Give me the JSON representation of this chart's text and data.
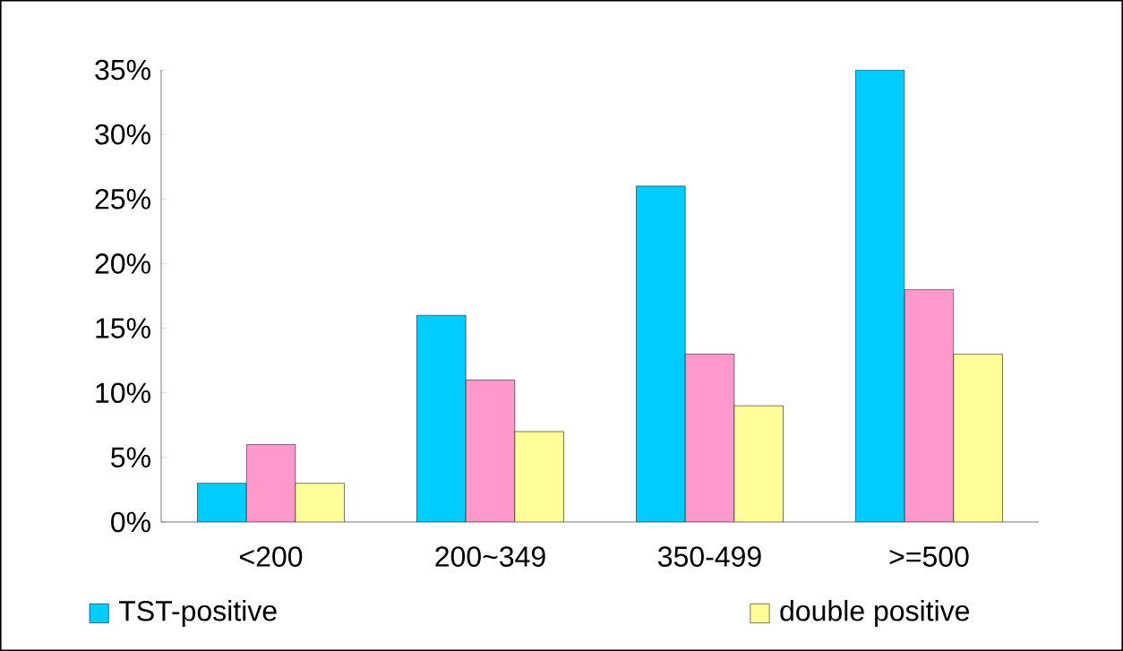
{
  "chart_data": {
    "type": "bar",
    "categories": [
      "<200",
      "200~349",
      "350-499",
      ">=500"
    ],
    "series": [
      {
        "name": "TST-positive",
        "color": "#00ccff",
        "values": [
          3,
          16,
          26,
          35
        ]
      },
      {
        "color": "#ff99cc",
        "values": [
          6,
          11,
          13,
          18
        ]
      },
      {
        "name": "double positive",
        "color": "#ffff99",
        "values": [
          3,
          7,
          9,
          13
        ]
      }
    ],
    "ylim": [
      0,
      35
    ],
    "yticks": [
      {
        "value": 0,
        "label": "0%"
      },
      {
        "value": 5,
        "label": "5%"
      },
      {
        "value": 10,
        "label": "10%"
      },
      {
        "value": 15,
        "label": "15%"
      },
      {
        "value": 20,
        "label": "20%"
      },
      {
        "value": 25,
        "label": "25%"
      },
      {
        "value": 30,
        "label": "30%"
      },
      {
        "value": 35,
        "label": "35%"
      }
    ],
    "legend": "bottom"
  }
}
